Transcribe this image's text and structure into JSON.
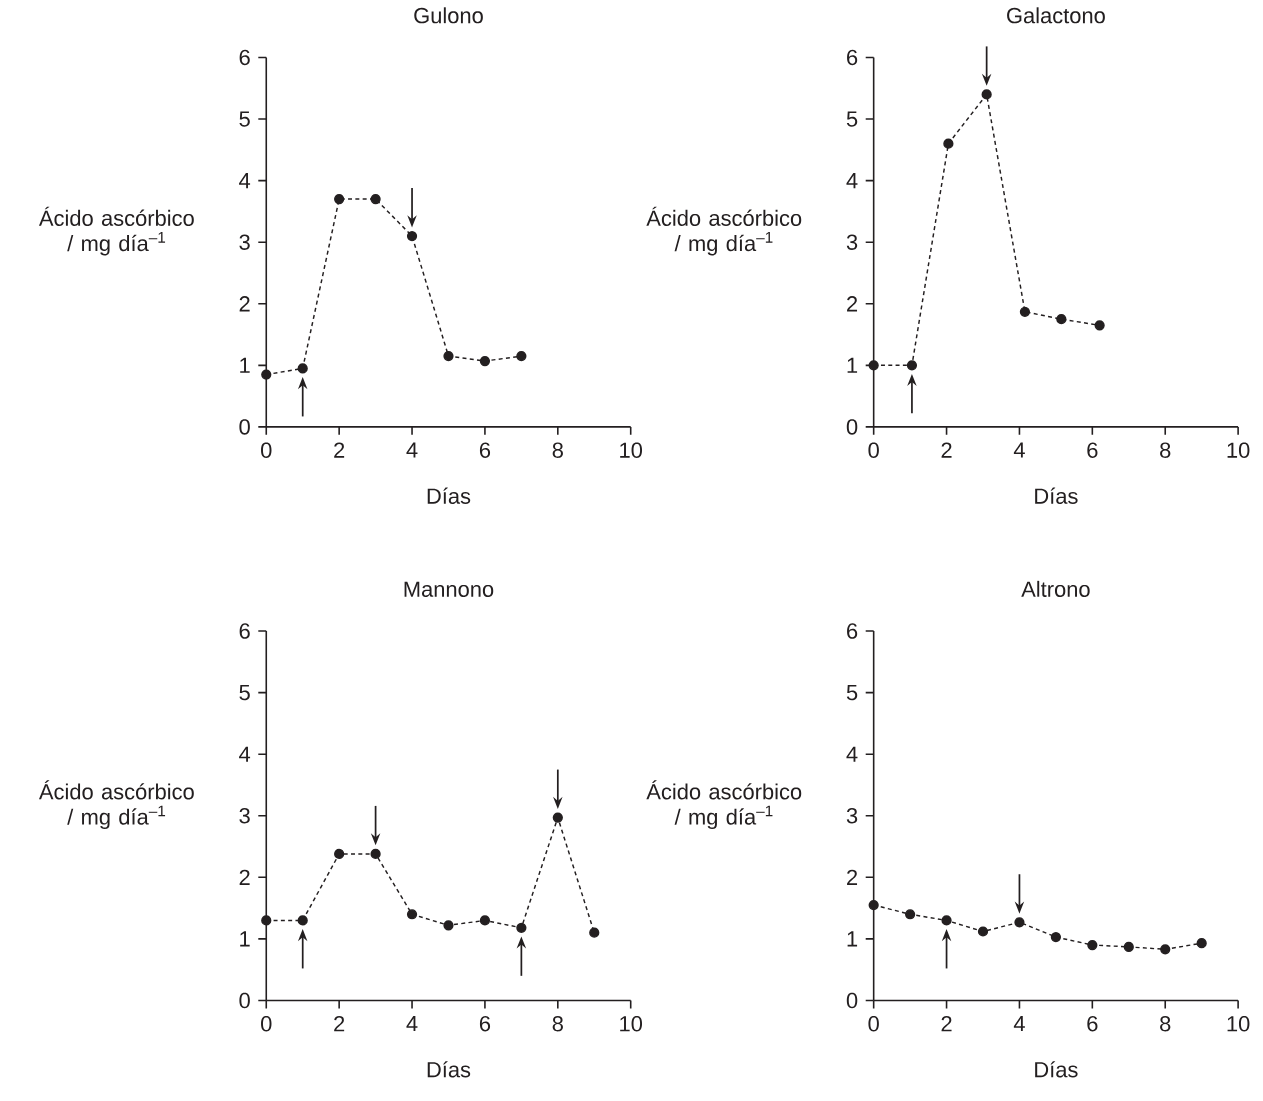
{
  "chart_data": [
    {
      "type": "line",
      "title": "Gulono",
      "xlabel": "Días",
      "ylabel": "Ácido ascórbico / mg día$^{–1}$",
      "xlim": [
        0,
        10
      ],
      "xticks": [
        0,
        2,
        4,
        6,
        8,
        10
      ],
      "ylim": [
        0,
        6
      ],
      "yticks": [
        0,
        1,
        2,
        3,
        4,
        5,
        6
      ],
      "marker": "circle",
      "line_style": "dashed",
      "series": [
        {
          "color": "#231f20",
          "x": [
            0,
            1,
            2,
            3,
            4,
            5,
            6,
            7
          ],
          "values": [
            0.85,
            0.95,
            3.7,
            3.7,
            3.1,
            1.15,
            1.07,
            1.15
          ]
        }
      ]
    },
    {
      "type": "line",
      "title": "Galactono",
      "xlabel": "Días",
      "ylabel": "Ácido ascórbico / mg día$^{–1}$",
      "xlim": [
        0,
        10
      ],
      "xticks": [
        0,
        2,
        4,
        6,
        8,
        10
      ],
      "ylim": [
        0,
        6
      ],
      "yticks": [
        0,
        1,
        2,
        3,
        4,
        5,
        6
      ],
      "marker": "circle",
      "line_style": "dashed",
      "series": [
        {
          "color": "#231f20",
          "x": [
            0,
            1.05,
            2.05,
            3.1,
            4.15,
            5.15,
            6.2
          ],
          "values": [
            1.0,
            1.0,
            4.6,
            5.4,
            1.87,
            1.75,
            1.65
          ]
        }
      ]
    },
    {
      "type": "line",
      "title": "Mannono",
      "xlabel": "Días",
      "ylabel": "Ácido ascórbico / mg día$^{–1}$",
      "xlim": [
        0,
        10
      ],
      "xticks": [
        0,
        2,
        4,
        6,
        8,
        10
      ],
      "ylim": [
        0,
        6
      ],
      "yticks": [
        0,
        1,
        2,
        3,
        4,
        5,
        6
      ],
      "marker": "circle",
      "line_style": "dashed",
      "series": [
        {
          "color": "#231f20",
          "x": [
            0,
            1,
            2,
            3,
            4,
            5,
            6,
            7,
            8,
            9
          ],
          "values": [
            1.3,
            1.3,
            2.38,
            2.38,
            1.4,
            1.22,
            1.3,
            1.18,
            2.97,
            1.1
          ]
        }
      ]
    },
    {
      "type": "line",
      "title": "Altrono",
      "xlabel": "Días",
      "ylabel": "Ácido ascórbico / mg día$^{–1}$",
      "xlim": [
        0,
        10
      ],
      "xticks": [
        0,
        2,
        4,
        6,
        8,
        10
      ],
      "ylim": [
        0,
        6
      ],
      "yticks": [
        0,
        1,
        2,
        3,
        4,
        5,
        6
      ],
      "marker": "circle",
      "line_style": "dashed",
      "series": [
        {
          "color": "#231f20",
          "x": [
            0,
            1,
            2,
            3,
            4,
            5,
            6,
            7,
            8,
            9
          ],
          "values": [
            1.55,
            1.4,
            1.3,
            1.12,
            1.27,
            1.03,
            0.9,
            0.87,
            0.83,
            0.93
          ]
        }
      ]
    }
  ]
}
